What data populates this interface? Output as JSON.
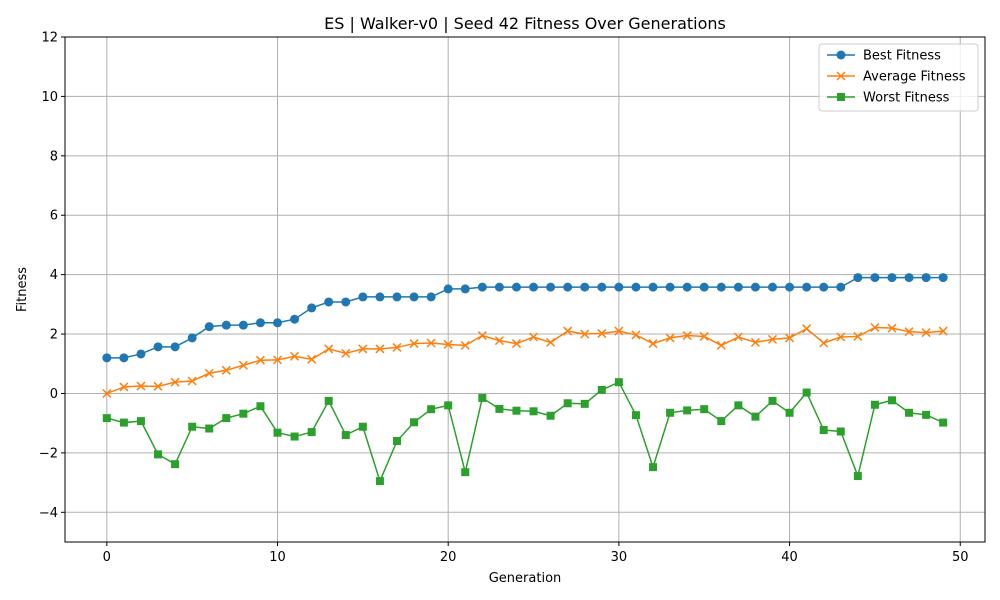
{
  "chart_data": {
    "type": "line",
    "title": "ES | Walker-v0 | Seed 42 Fitness Over Generations",
    "xlabel": "Generation",
    "ylabel": "Fitness",
    "xlim": [
      -2.45,
      51.45
    ],
    "ylim": [
      -5,
      12
    ],
    "xticks": [
      0,
      10,
      20,
      30,
      40,
      50
    ],
    "yticks": [
      -4,
      -2,
      0,
      2,
      4,
      6,
      8,
      10,
      12
    ],
    "grid": true,
    "legend_position": "top-right",
    "x": [
      0,
      1,
      2,
      3,
      4,
      5,
      6,
      7,
      8,
      9,
      10,
      11,
      12,
      13,
      14,
      15,
      16,
      17,
      18,
      19,
      20,
      21,
      22,
      23,
      24,
      25,
      26,
      27,
      28,
      29,
      30,
      31,
      32,
      33,
      34,
      35,
      36,
      37,
      38,
      39,
      40,
      41,
      42,
      43,
      44,
      45,
      46,
      47,
      48,
      49
    ],
    "series": [
      {
        "name": "Best Fitness",
        "color": "#1f77b4",
        "marker": "circle",
        "values": [
          1.2,
          1.2,
          1.33,
          1.57,
          1.57,
          1.87,
          2.25,
          2.3,
          2.3,
          2.38,
          2.38,
          2.5,
          2.88,
          3.08,
          3.08,
          3.25,
          3.25,
          3.25,
          3.25,
          3.25,
          3.52,
          3.52,
          3.58,
          3.58,
          3.58,
          3.58,
          3.58,
          3.58,
          3.58,
          3.58,
          3.58,
          3.58,
          3.58,
          3.58,
          3.58,
          3.58,
          3.58,
          3.58,
          3.58,
          3.58,
          3.58,
          3.58,
          3.58,
          3.58,
          3.9,
          3.9,
          3.9,
          3.9,
          3.9,
          3.9
        ]
      },
      {
        "name": "Average Fitness",
        "color": "#ff7f0e",
        "marker": "x",
        "values": [
          0.0,
          0.22,
          0.25,
          0.24,
          0.38,
          0.42,
          0.68,
          0.78,
          0.95,
          1.12,
          1.13,
          1.25,
          1.15,
          1.5,
          1.35,
          1.5,
          1.5,
          1.55,
          1.68,
          1.7,
          1.65,
          1.62,
          1.95,
          1.78,
          1.68,
          1.9,
          1.72,
          2.1,
          2.0,
          2.02,
          2.1,
          1.97,
          1.68,
          1.87,
          1.95,
          1.92,
          1.62,
          1.9,
          1.72,
          1.82,
          1.87,
          2.18,
          1.7,
          1.9,
          1.92,
          2.22,
          2.2,
          2.08,
          2.05,
          2.1
        ]
      },
      {
        "name": "Worst Fitness",
        "color": "#2ca02c",
        "marker": "square",
        "values": [
          -0.83,
          -0.98,
          -0.93,
          -2.05,
          -2.38,
          -1.12,
          -1.18,
          -0.83,
          -0.68,
          -0.43,
          -1.32,
          -1.45,
          -1.3,
          -0.25,
          -1.4,
          -1.12,
          -2.95,
          -1.6,
          -0.97,
          -0.53,
          -0.4,
          -2.65,
          -0.15,
          -0.52,
          -0.58,
          -0.6,
          -0.75,
          -0.33,
          -0.35,
          0.12,
          0.38,
          -0.73,
          -2.48,
          -0.65,
          -0.57,
          -0.53,
          -0.93,
          -0.4,
          -0.78,
          -0.25,
          -0.65,
          0.03,
          -1.23,
          -1.28,
          -2.78,
          -0.38,
          -0.23,
          -0.65,
          -0.72,
          -0.98
        ]
      }
    ]
  }
}
